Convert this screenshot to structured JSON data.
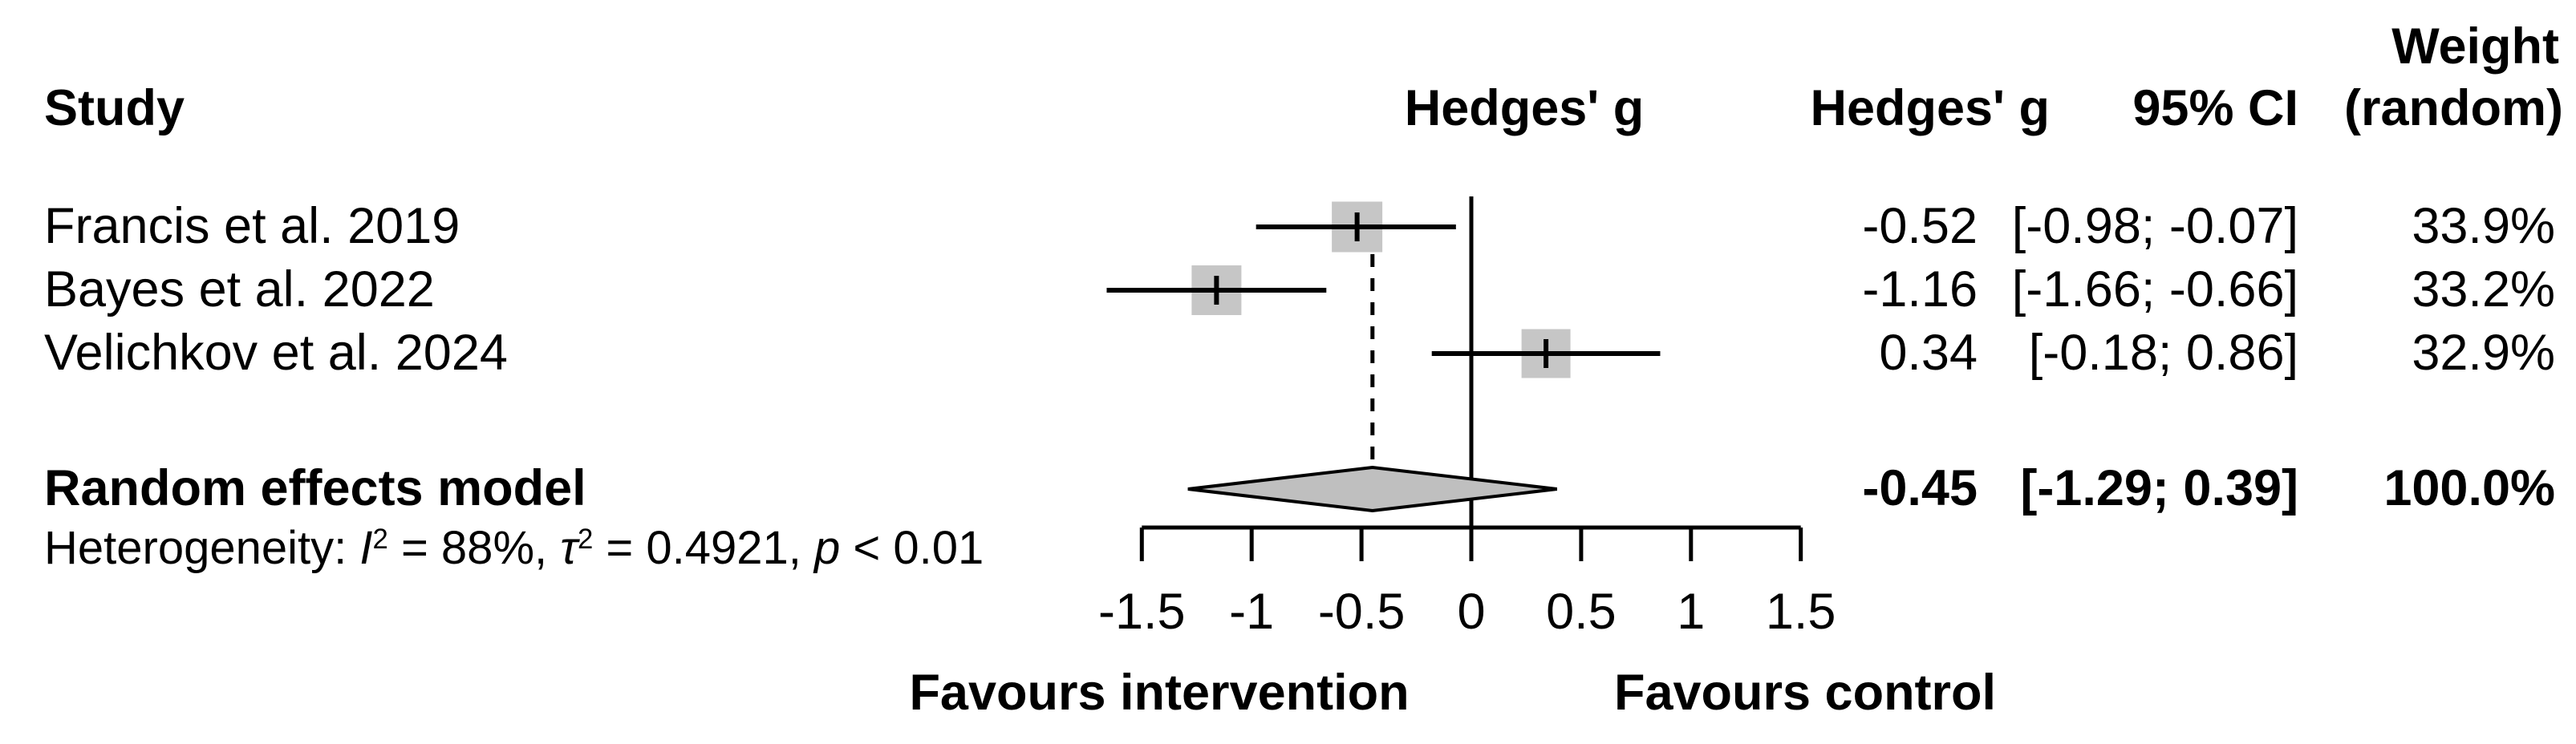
{
  "columns": {
    "study": "Study",
    "plot_header": "Hedges' g",
    "g": "Hedges' g",
    "ci": "95% CI",
    "weight_line1": "Weight",
    "weight_line2": "(random)"
  },
  "rows": [
    {
      "study": "Francis et al. 2019",
      "g": "-0.52",
      "ci": "[-0.98; -0.07]",
      "weight": "33.9%"
    },
    {
      "study": "Bayes et al. 2022",
      "g": "-1.16",
      "ci": "[-1.66; -0.66]",
      "weight": "33.2%"
    },
    {
      "study": "Velichkov et al. 2024",
      "g": "0.34",
      "ci": "[-0.18;  0.86]",
      "weight": "32.9%"
    }
  ],
  "summary": {
    "label": "Random effects model",
    "g": "-0.45",
    "ci": "[-1.29;  0.39]",
    "weight": "100.0%"
  },
  "heterogeneity": {
    "prefix": "Heterogeneity: ",
    "i_sym": "I",
    "i_sup": "2",
    "i_rest": " = 88%, ",
    "tau_sym": "τ",
    "tau_sup": "2",
    "tau_rest": " = 0.4921, ",
    "p_sym": "p",
    "p_rest": " < 0.01"
  },
  "axis": {
    "tick_labels": [
      "-1.5",
      "-1",
      "-0.5",
      "0",
      "0.5",
      "1",
      "1.5"
    ]
  },
  "footer": {
    "left": "Favours intervention",
    "right": "Favours control"
  },
  "colors": {
    "square_fill": "#c6c6c6",
    "diamond_fill": "#bfbfbf",
    "line": "#000000"
  },
  "chart_data": {
    "type": "forest",
    "effect_measure": "Hedges' g",
    "model": "random effects",
    "studies": [
      {
        "name": "Francis et al. 2019",
        "g": -0.52,
        "ci_low": -0.98,
        "ci_high": -0.07,
        "weight_pct": 33.9
      },
      {
        "name": "Bayes et al. 2022",
        "g": -1.16,
        "ci_low": -1.66,
        "ci_high": -0.66,
        "weight_pct": 33.2
      },
      {
        "name": "Velichkov et al. 2024",
        "g": 0.34,
        "ci_low": -0.18,
        "ci_high": 0.86,
        "weight_pct": 32.9
      }
    ],
    "pooled": {
      "g": -0.45,
      "ci_low": -1.29,
      "ci_high": 0.39,
      "weight_pct": 100.0
    },
    "heterogeneity": {
      "I2_pct": 88,
      "tau2": 0.4921,
      "p": "< 0.01"
    },
    "x_axis": {
      "ticks": [
        -1.5,
        -1,
        -0.5,
        0,
        0.5,
        1,
        1.5
      ],
      "range": [
        -1.5,
        1.5
      ],
      "zero_reference_line": true
    },
    "labels": {
      "favours_left": "Favours intervention",
      "favours_right": "Favours control"
    },
    "legend_position": "none",
    "grid": false
  }
}
